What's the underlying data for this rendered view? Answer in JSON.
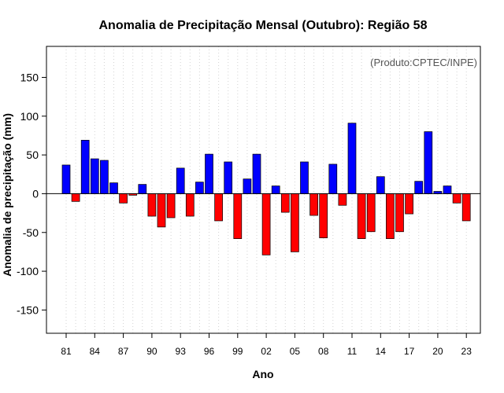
{
  "chart_data": {
    "type": "bar",
    "title": "Anomalia de Precipitação Mensal (Outubro): Região 58",
    "xlabel": "Ano",
    "ylabel": "Anomalia de precipitação (mm)",
    "credit": "(Produto:CPTEC/INPE)",
    "ylim": [
      -180,
      190
    ],
    "y_ticks": [
      -150,
      -100,
      -50,
      0,
      50,
      100,
      150
    ],
    "x_tick_labels": [
      "81",
      "84",
      "87",
      "90",
      "93",
      "96",
      "99",
      "02",
      "05",
      "08",
      "11",
      "14",
      "17",
      "20",
      "23"
    ],
    "x_tick_start_index": 0,
    "x_tick_step": 3,
    "grid": true,
    "colors": {
      "positive": "#0000ff",
      "negative": "#ff0000",
      "grid": "#d3d3d3",
      "zero_line": "#000000"
    },
    "categories": [
      "1981",
      "1982",
      "1983",
      "1984",
      "1985",
      "1986",
      "1987",
      "1988",
      "1989",
      "1990",
      "1991",
      "1992",
      "1993",
      "1994",
      "1995",
      "1996",
      "1997",
      "1998",
      "1999",
      "2000",
      "2001",
      "2002",
      "2003",
      "2004",
      "2005",
      "2006",
      "2007",
      "2008",
      "2009",
      "2010",
      "2011",
      "2012",
      "2013",
      "2014",
      "2015",
      "2016",
      "2017",
      "2018",
      "2019",
      "2020",
      "2021",
      "2022",
      "2023"
    ],
    "values": [
      37,
      -10,
      69,
      45,
      43,
      14,
      -12,
      -2,
      12,
      -29,
      -43,
      -31,
      33,
      -29,
      15,
      51,
      -35,
      41,
      -58,
      19,
      51,
      -79,
      10,
      -24,
      -75,
      41,
      -28,
      -57,
      38,
      -15,
      91,
      -58,
      -49,
      22,
      -58,
      -49,
      -26,
      16,
      80,
      3,
      10,
      -12,
      -35
    ]
  }
}
